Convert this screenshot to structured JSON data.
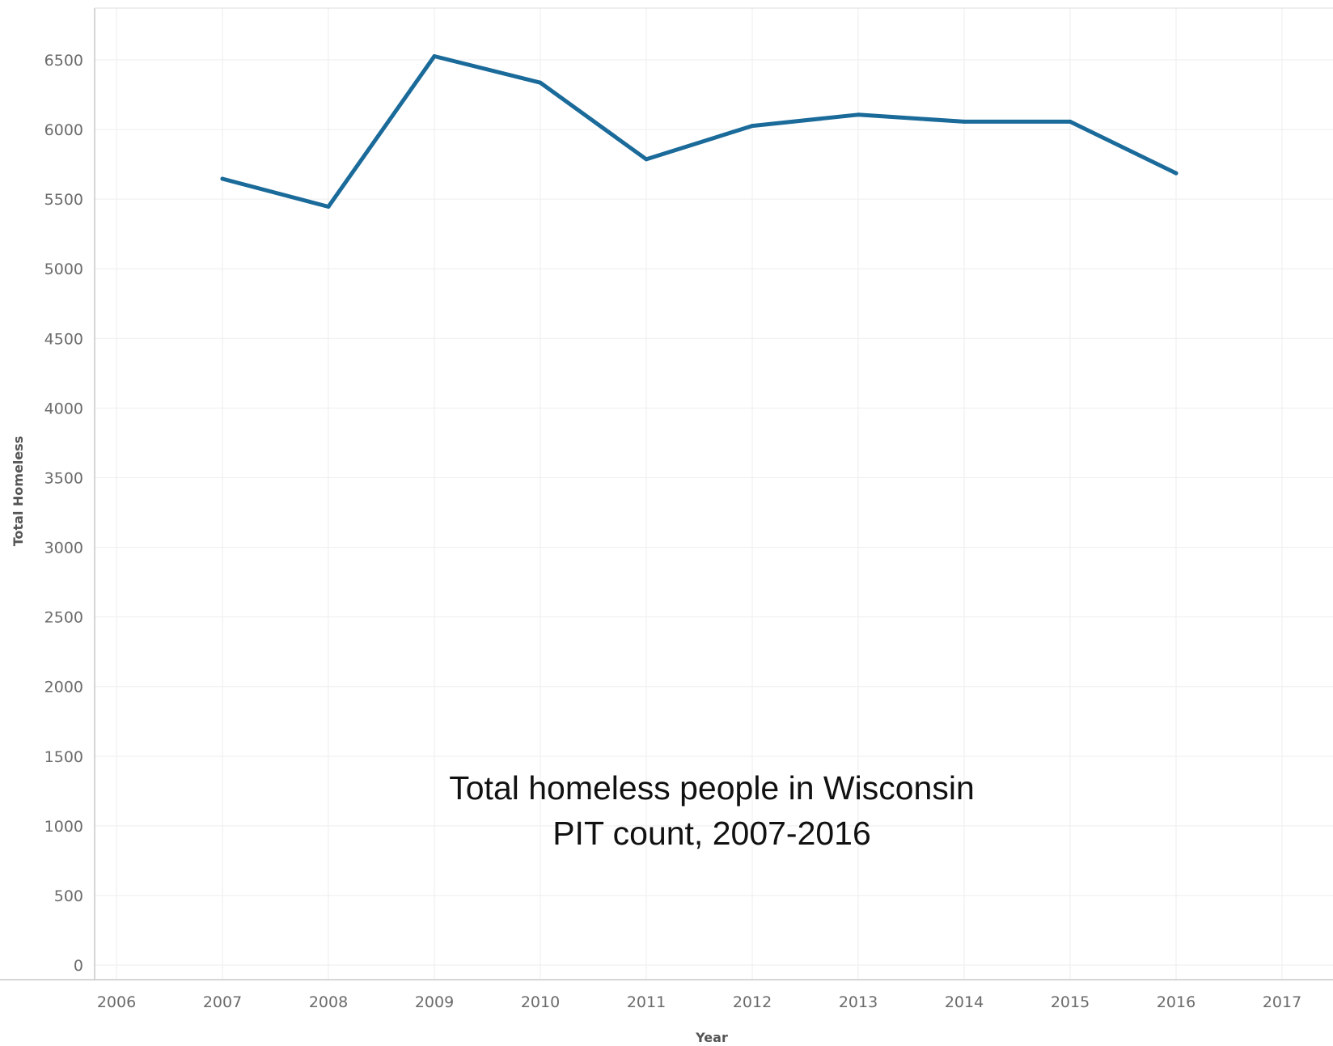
{
  "chart_data": {
    "type": "line",
    "title": "",
    "xlabel": "Year",
    "ylabel": "Total Homeless",
    "xlim": [
      2006,
      2017
    ],
    "ylim": [
      0,
      6800
    ],
    "x_ticks": [
      "2006",
      "2007",
      "2008",
      "2009",
      "2010",
      "2011",
      "2012",
      "2013",
      "2014",
      "2015",
      "2016",
      "2017"
    ],
    "y_ticks": [
      "0",
      "500",
      "1000",
      "1500",
      "2000",
      "2500",
      "3000",
      "3500",
      "4000",
      "4500",
      "5000",
      "5500",
      "6000",
      "6500"
    ],
    "grid": true,
    "legend": "none",
    "series": [
      {
        "color": "#1a6a9a",
        "x": [
          2007,
          2008,
          2009,
          2010,
          2011,
          2012,
          2013,
          2014,
          2015,
          2016
        ],
        "values": [
          5646,
          5446,
          6526,
          6336,
          5786,
          6026,
          6106,
          6056,
          6056,
          5686
        ]
      }
    ],
    "annotation": {
      "line1": "Total homeless people in Wisconsin",
      "line2": "PIT count, 2007-2016"
    }
  }
}
